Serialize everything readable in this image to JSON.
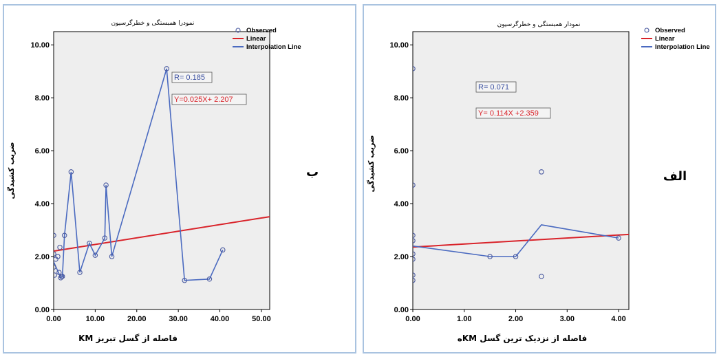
{
  "colors": {
    "observed": "#4a5aa0",
    "linear": "#d9232a",
    "interpolation": "#4a6ac0"
  },
  "legend": {
    "observed": "Observed",
    "linear": "Linear",
    "interpolation": "Interpolation Line"
  },
  "chart_data": [
    {
      "id": "b",
      "type": "scatter",
      "title": "نمودرا همبستگی و خطرگرسیون",
      "xlabel": "فاصله از گسل تبریز KM",
      "ylabel": "ضریب کشیدگی",
      "side_label": "ب",
      "xlim": [
        0,
        52
      ],
      "ylim": [
        0,
        10.5
      ],
      "xticks": [
        "0.00",
        "10.00",
        "20.00",
        "30.00",
        "40.00",
        "50.00"
      ],
      "yticks": [
        "0.00",
        "2.00",
        "4.00",
        "6.00",
        "8.00",
        "10.00"
      ],
      "points": [
        [
          0,
          2.8
        ],
        [
          0,
          2.1
        ],
        [
          0,
          1.6
        ],
        [
          0.2,
          1.3
        ],
        [
          0.5,
          1.9
        ],
        [
          1.0,
          2.0
        ],
        [
          1.3,
          1.4
        ],
        [
          1.5,
          2.35
        ],
        [
          1.7,
          1.2
        ],
        [
          1.9,
          1.25
        ],
        [
          2.1,
          1.25
        ],
        [
          2.6,
          2.8
        ],
        [
          4.2,
          5.2
        ],
        [
          6.3,
          1.4
        ],
        [
          8.6,
          2.5
        ],
        [
          10.0,
          2.05
        ],
        [
          12.3,
          2.7
        ],
        [
          12.6,
          4.7
        ],
        [
          14.0,
          2.0
        ],
        [
          27.2,
          9.1
        ],
        [
          31.5,
          1.1
        ],
        [
          37.5,
          1.15
        ],
        [
          40.7,
          2.25
        ]
      ],
      "interpolation": [
        [
          0,
          1.8
        ],
        [
          1.7,
          1.2
        ],
        [
          2.1,
          1.25
        ],
        [
          2.6,
          2.8
        ],
        [
          4.2,
          5.2
        ],
        [
          6.3,
          1.4
        ],
        [
          8.6,
          2.5
        ],
        [
          10.0,
          2.05
        ],
        [
          12.3,
          2.7
        ],
        [
          12.6,
          4.7
        ],
        [
          14.0,
          2.0
        ],
        [
          27.2,
          9.1
        ],
        [
          31.5,
          1.1
        ],
        [
          37.5,
          1.15
        ],
        [
          40.7,
          2.25
        ]
      ],
      "linear": {
        "slope": 0.025,
        "intercept": 2.207
      },
      "r_text": "R= 0.185",
      "eq_text": "Y=0.025X+ 2.207"
    },
    {
      "id": "alef",
      "type": "scatter",
      "title": "نمودار همبستگی و خطرگرسیون",
      "xlabel": "فاصله از نزدیک ترین گسل KMه",
      "ylabel": "ضریب کشیدگی",
      "side_label": "الف",
      "xlim": [
        0,
        4.2
      ],
      "ylim": [
        0,
        10.5
      ],
      "xticks": [
        "0.00",
        "1.00",
        "2.00",
        "3.00",
        "4.00"
      ],
      "yticks": [
        "0.00",
        "2.00",
        "4.00",
        "6.00",
        "8.00",
        "10.00"
      ],
      "points": [
        [
          0,
          9.1
        ],
        [
          0,
          4.7
        ],
        [
          0,
          2.8
        ],
        [
          0,
          2.6
        ],
        [
          0,
          2.1
        ],
        [
          0,
          1.9
        ],
        [
          0,
          1.3
        ],
        [
          0,
          1.1
        ],
        [
          1.5,
          2.0
        ],
        [
          2.0,
          2.0
        ],
        [
          2.5,
          5.2
        ],
        [
          2.5,
          1.25
        ],
        [
          4.0,
          2.7
        ]
      ],
      "interpolation": [
        [
          0,
          2.4
        ],
        [
          1.5,
          2.0
        ],
        [
          2.0,
          2.0
        ],
        [
          2.5,
          3.2
        ],
        [
          4.0,
          2.7
        ]
      ],
      "linear": {
        "slope": 0.114,
        "intercept": 2.359
      },
      "r_text": "R= 0.071",
      "eq_text": "Y= 0.114X +2.359"
    }
  ]
}
